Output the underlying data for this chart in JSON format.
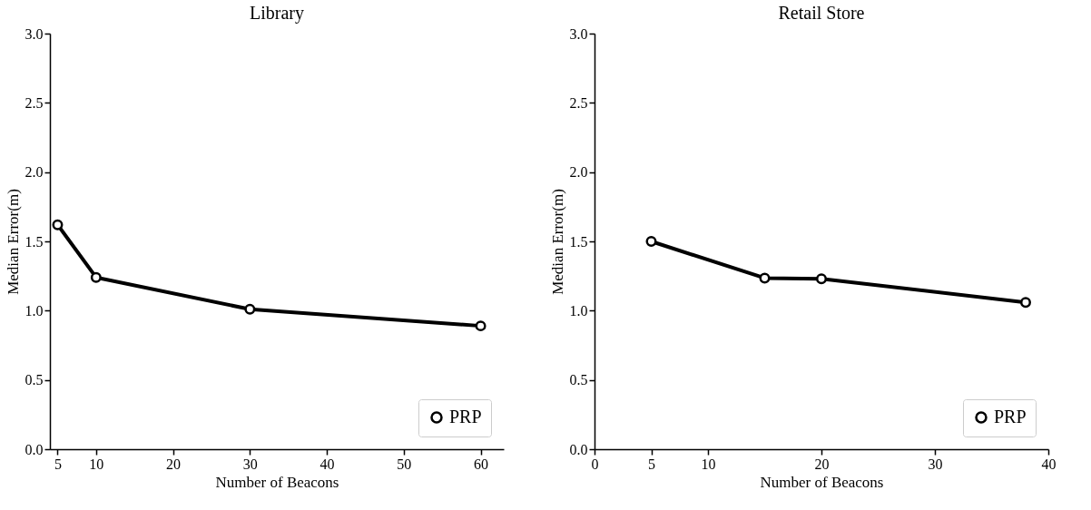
{
  "chart_data": [
    {
      "type": "line",
      "title": "Library",
      "xlabel": "Number of Beacons",
      "ylabel": "Median Error(m)",
      "x": [
        5,
        10,
        30,
        60
      ],
      "series": [
        {
          "name": "PRP",
          "color": "#000000",
          "values": [
            1.62,
            1.24,
            1.01,
            0.89
          ]
        }
      ],
      "xlim": [
        4,
        63
      ],
      "xticks": [
        5,
        10,
        20,
        30,
        40,
        50,
        60
      ],
      "ylim": [
        0,
        3
      ],
      "yticks": [
        {
          "value": 0,
          "label": "0.0"
        },
        0.5,
        {
          "value": 1,
          "label": "1.0"
        },
        1.5,
        {
          "value": 2,
          "label": "2.0"
        },
        2.5,
        {
          "value": 3,
          "label": "3.0"
        }
      ],
      "grid": false,
      "legend": "bottom right",
      "marker": "circle",
      "line_style": "solid"
    },
    {
      "type": "line",
      "title": "Retail Store",
      "xlabel": "Number of Beacons",
      "ylabel": "Median Error(m)",
      "x": [
        5,
        15,
        20,
        38
      ],
      "series": [
        {
          "name": "PRP",
          "color": "#000000",
          "values": [
            1.5,
            1.235,
            1.23,
            1.06
          ]
        }
      ],
      "xlim": [
        0,
        40
      ],
      "xticks": [
        0,
        5,
        10,
        20,
        30,
        40
      ],
      "ylim": [
        0,
        3
      ],
      "yticks": [
        {
          "value": 0,
          "label": "0.0"
        },
        0.5,
        {
          "value": 1,
          "label": "1.0"
        },
        1.5,
        {
          "value": 2,
          "label": "2.0"
        },
        2.5,
        {
          "value": 3,
          "label": "3.0"
        }
      ],
      "grid": false,
      "legend": "bottom right",
      "marker": "circle",
      "line_style": "solid"
    }
  ]
}
